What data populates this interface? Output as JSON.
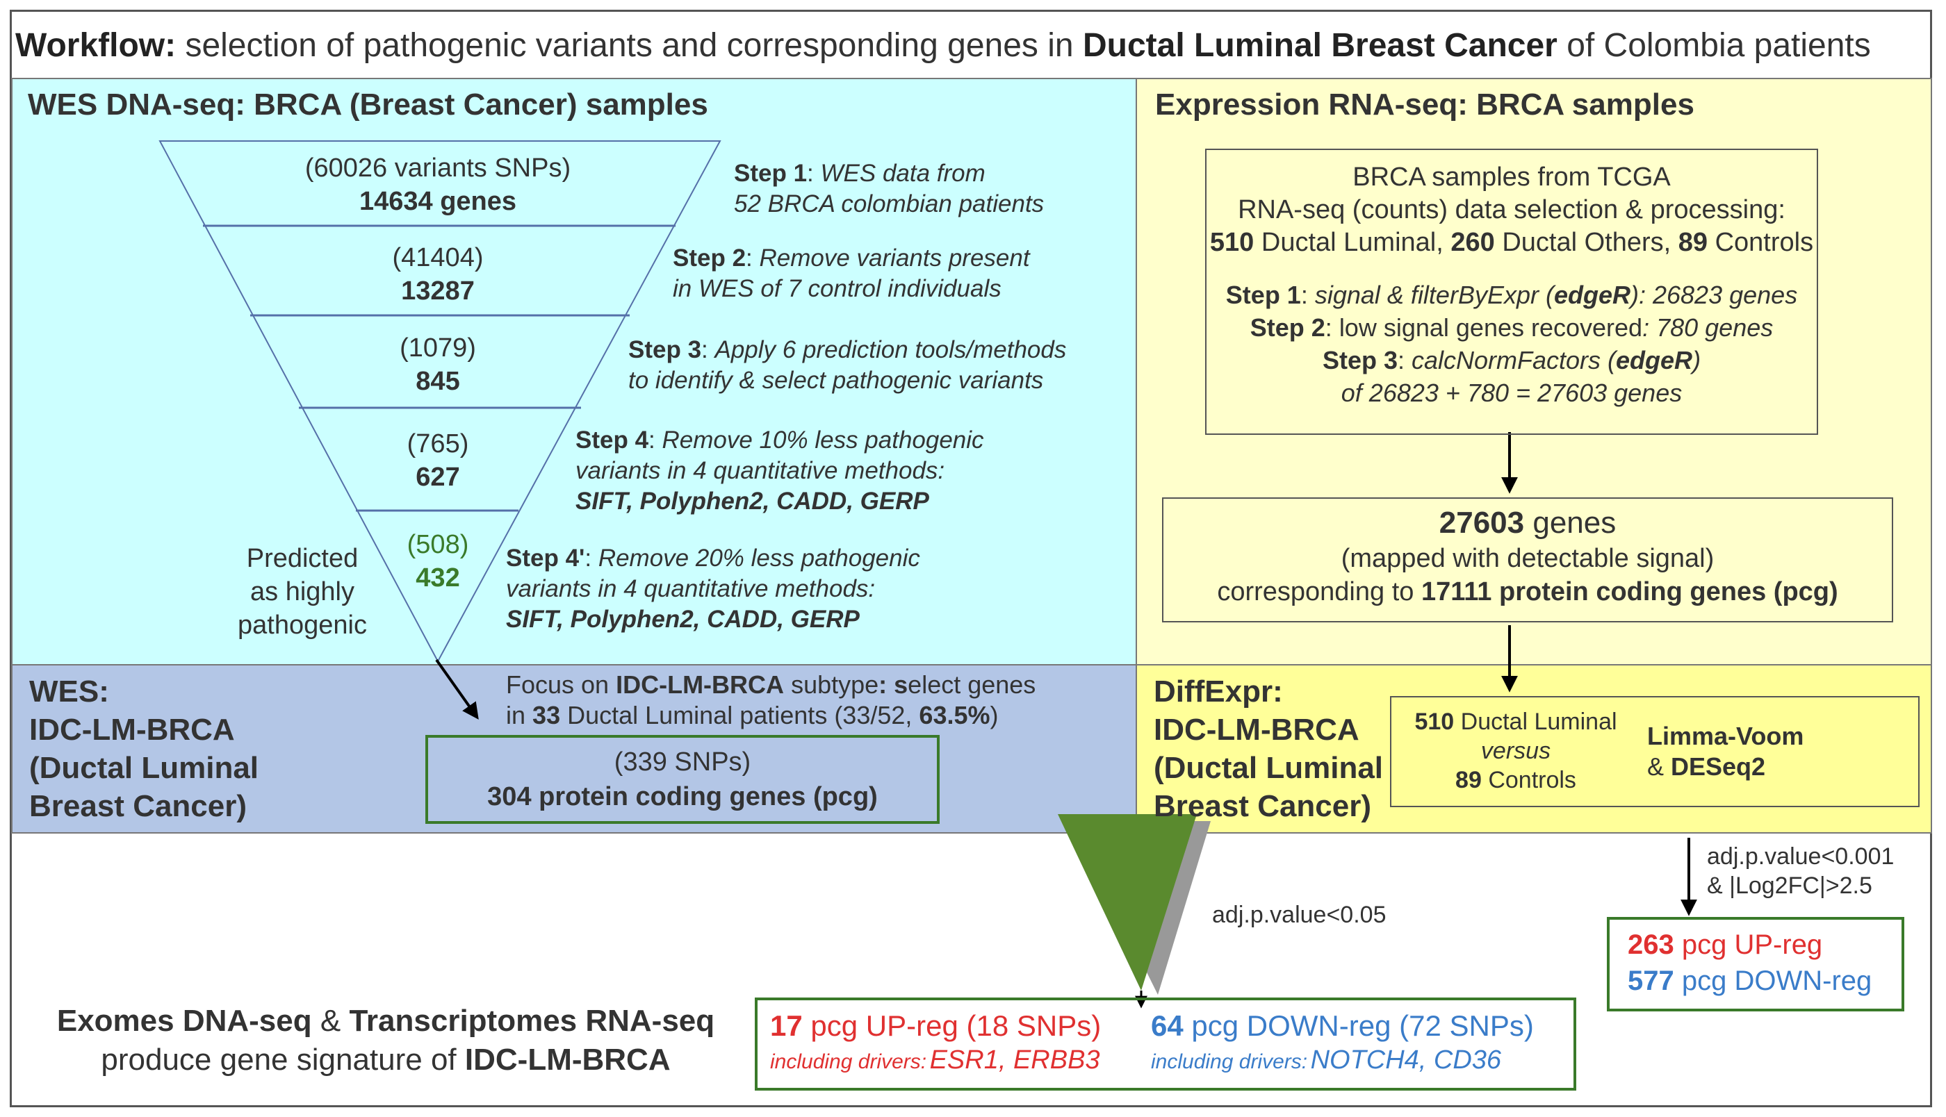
{
  "title": {
    "bold_prefix": "Workflow:",
    "text_part1": "selection of pathogenic variants and corresponding genes in",
    "bold_mid": "Ductal Luminal Breast Cancer",
    "text_part2": "of Colombia patients"
  },
  "wes_panel": {
    "title": "WES DNA-seq: BRCA (Breast Cancer) samples",
    "funnel_levels": [
      {
        "count": "(60026 variants SNPs)",
        "genes": "14634 genes"
      },
      {
        "count": "(41404)",
        "genes": "13287"
      },
      {
        "count": "(1079)",
        "genes": "845"
      },
      {
        "count": "(765)",
        "genes": "627"
      },
      {
        "count": "(508)",
        "genes": "432"
      }
    ],
    "predicted_label": [
      "Predicted",
      "as highly",
      "pathogenic"
    ],
    "steps": [
      {
        "label": "Step 1",
        "lines": [
          "WES data from",
          "52 BRCA colombian patients"
        ]
      },
      {
        "label": "Step 2",
        "lines": [
          "Remove variants present",
          "in WES of 7 control individuals"
        ]
      },
      {
        "label": "Step 3",
        "lines": [
          "Apply 6 prediction tools/methods",
          "to identify & select pathogenic variants"
        ]
      },
      {
        "label": "Step 4",
        "lines": [
          "Remove 10% less pathogenic",
          "variants in 4 quantitative methods:",
          "SIFT, Polyphen2, CADD, GERP"
        ]
      },
      {
        "label": "Step 4'",
        "lines": [
          "Remove 20% less pathogenic",
          "variants in 4 quantitative methods:",
          "SIFT, Polyphen2, CADD, GERP"
        ]
      }
    ]
  },
  "rna_panel": {
    "title": "Expression RNA-seq: BRCA samples",
    "box1": {
      "line1": "BRCA samples from TCGA",
      "line2": "RNA-seq (counts) data selection & processing:",
      "n_lum": "510",
      "lum": "Ductal Luminal,",
      "n_oth": "260",
      "oth": "Ductal Others,",
      "n_ctl": "89",
      "ctl": "Controls",
      "step1_label": "Step 1",
      "step1_a": "signal & filterByExpr (",
      "step1_b": "edgeR",
      "step1_c": "): 26823 genes",
      "step2_label": "Step 2",
      "step2_a": "low signal genes recovered",
      "step2_b": ": 780 genes",
      "step3_label": "Step 3",
      "step3_a": "calcNormFactors (",
      "step3_b": "edgeR",
      "step3_c": ")",
      "step3_line2": "of 26823 + 780 = 27603 genes"
    },
    "box2": {
      "genes_num": "27603",
      "genes_word": "genes",
      "line2": "(mapped with detectable signal)",
      "line3_a": "corresponding to",
      "line3_b": "17111 protein coding genes (pcg)"
    }
  },
  "wes_lm_panel": {
    "title_lines": [
      "WES:",
      "IDC-LM-BRCA",
      "(Ductal Luminal",
      "Breast Cancer)"
    ],
    "focus_a": "Focus on",
    "focus_b": "IDC-LM-BRCA",
    "focus_c": "subtype",
    "focus_d": ": s",
    "focus_e": "elect genes",
    "focus2_a": "in",
    "focus2_b": "33",
    "focus2_c": "Ductal Luminal patients (33/52,",
    "focus2_d": "63.5%",
    "focus2_e": ")",
    "box_line1": "(339 SNPs)",
    "box_line2": "304 protein coding genes (pcg)"
  },
  "diffexpr_panel": {
    "title_lines": [
      "DiffExpr:",
      "IDC-LM-BRCA",
      "(Ductal Luminal",
      "Breast Cancer)"
    ],
    "n_lum": "510",
    "lum": "Ductal Luminal",
    "versus": "versus",
    "n_ctl": "89",
    "ctl": "Controls",
    "method_a": "Limma-Voom",
    "method_b_amp": "& ",
    "method_b": "DESeq2"
  },
  "thresholds": {
    "right_line1": "adj.p.value<0.001",
    "right_line2": "& |Log2FC|>2.5",
    "center": "adj.p.value<0.05"
  },
  "right_result": {
    "up_num": "263",
    "up_text": "pcg UP-reg",
    "down_num": "577",
    "down_text": "pcg DOWN-reg"
  },
  "signature": {
    "left_line1_a": "Exomes DNA-seq",
    "left_line1_b": "&",
    "left_line1_c": "Transcriptomes RNA-seq",
    "left_line2_a": "produce gene signature of",
    "left_line2_b": "IDC-LM-BRCA",
    "up_num": "17",
    "up_text": "pcg UP-reg (18 SNPs)",
    "up_drivers_label": "including drivers:",
    "up_drivers": "ESR1, ERBB3",
    "down_num": "64",
    "down_text": "pcg DOWN-reg (72 SNPs)",
    "down_drivers_label": "including drivers:",
    "down_drivers": "NOTCH4, CD36"
  },
  "colors": {
    "cyan_bg": "#ccffff",
    "yellow_bg": "#ffffcc",
    "blue_bg": "#b3c6e6",
    "yellow2_bg": "#ffff99",
    "funnel_green": "#5a8a2e",
    "up_red": "#e03030",
    "down_blue": "#3a7cc9"
  }
}
